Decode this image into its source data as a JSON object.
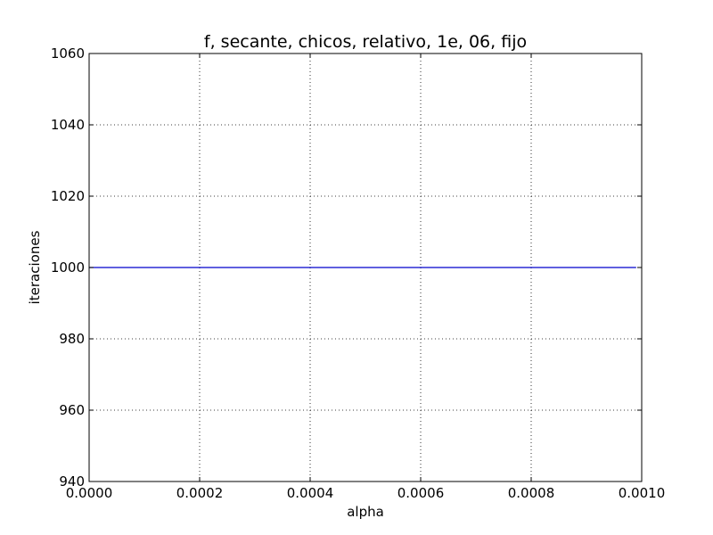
{
  "chart_data": {
    "type": "line",
    "title": "f, secante, chicos, relativo, 1e, 06, fijo",
    "xlabel": "alpha",
    "ylabel": "iteraciones",
    "xlim": [
      0.0,
      0.001
    ],
    "ylim": [
      940,
      1060
    ],
    "x_ticks": [
      0.0,
      0.0002,
      0.0004,
      0.0006,
      0.0008,
      0.001
    ],
    "x_tick_labels": [
      "0.0000",
      "0.0002",
      "0.0004",
      "0.0006",
      "0.0008",
      "0.0010"
    ],
    "y_ticks": [
      940,
      960,
      980,
      1000,
      1020,
      1040,
      1060
    ],
    "y_tick_labels": [
      "940",
      "960",
      "980",
      "1000",
      "1020",
      "1040",
      "1060"
    ],
    "grid": true,
    "series": [
      {
        "color": "#0000cc",
        "x": [
          0.0,
          0.00099
        ],
        "y": [
          1000,
          1000
        ]
      }
    ]
  }
}
